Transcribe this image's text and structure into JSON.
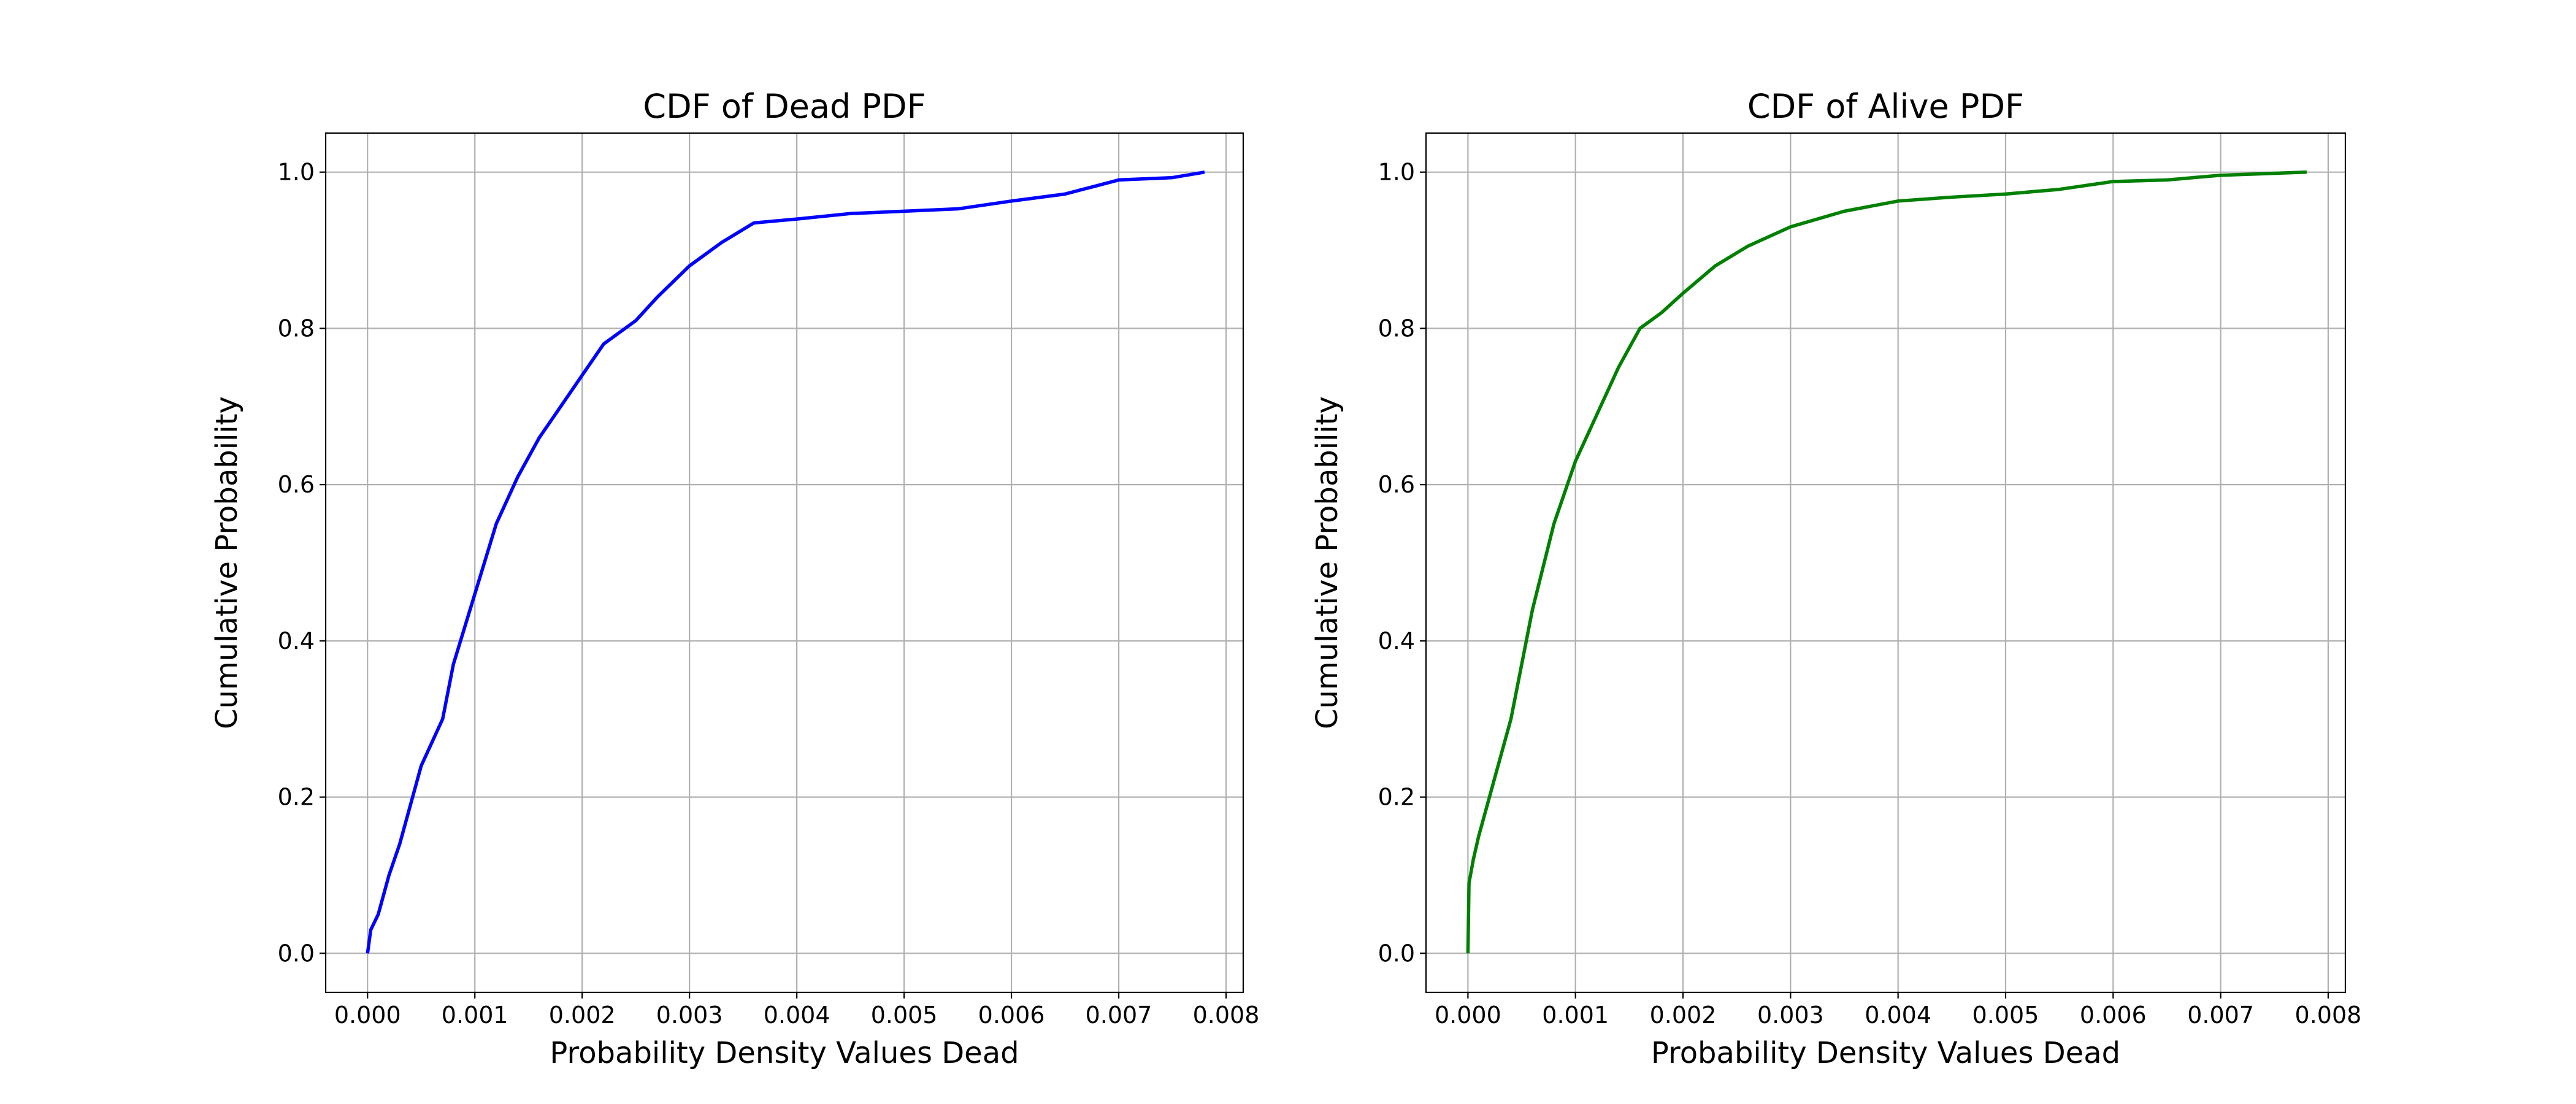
{
  "chart_data": [
    {
      "type": "line",
      "title": "CDF of Dead PDF",
      "x_label": "Probability Density Values Dead",
      "y_label": "Cumulative Probability",
      "grid": true,
      "xlim": [
        -0.00039,
        0.00816
      ],
      "ylim": [
        -0.05,
        1.05
      ],
      "xticks": [
        {
          "value": 0,
          "label": "0.000"
        },
        {
          "value": 0.001,
          "label": "0.001"
        },
        {
          "value": 0.002,
          "label": "0.002"
        },
        {
          "value": 0.003,
          "label": "0.003"
        },
        {
          "value": 0.004,
          "label": "0.004"
        },
        {
          "value": 0.005,
          "label": "0.005"
        },
        {
          "value": 0.006,
          "label": "0.006"
        },
        {
          "value": 0.007,
          "label": "0.007"
        },
        {
          "value": 0.008,
          "label": "0.008"
        }
      ],
      "yticks": [
        {
          "value": 0,
          "label": "0.0"
        },
        {
          "value": 0.2,
          "label": "0.2"
        },
        {
          "value": 0.4,
          "label": "0.4"
        },
        {
          "value": 0.6,
          "label": "0.6"
        },
        {
          "value": 0.8,
          "label": "0.8"
        },
        {
          "value": 1,
          "label": "1.0"
        }
      ],
      "x": [
        0,
        3e-05,
        0.0001,
        0.0002,
        0.0003,
        0.0005,
        0.0007,
        0.0008,
        0.001,
        0.0012,
        0.0014,
        0.0016,
        0.0018,
        0.002,
        0.0022,
        0.0025,
        0.0027,
        0.003,
        0.0033,
        0.0036,
        0.004,
        0.0045,
        0.005,
        0.0055,
        0.006,
        0.0065,
        0.007,
        0.0075,
        0.0078
      ],
      "series": [
        {
          "color": "#0000ff",
          "values": [
            0,
            0.03,
            0.05,
            0.1,
            0.14,
            0.24,
            0.3,
            0.37,
            0.46,
            0.55,
            0.61,
            0.66,
            0.7,
            0.74,
            0.78,
            0.81,
            0.84,
            0.88,
            0.91,
            0.935,
            0.94,
            0.947,
            0.95,
            0.953,
            0.963,
            0.972,
            0.99,
            0.993,
            1.0
          ]
        }
      ]
    },
    {
      "type": "line",
      "title": "CDF of Alive PDF",
      "x_label": "Probability Density Values Dead",
      "y_label": "Cumulative Probability",
      "grid": true,
      "xlim": [
        -0.00039,
        0.00816
      ],
      "ylim": [
        -0.05,
        1.05
      ],
      "xticks": [
        {
          "value": 0,
          "label": "0.000"
        },
        {
          "value": 0.001,
          "label": "0.001"
        },
        {
          "value": 0.002,
          "label": "0.002"
        },
        {
          "value": 0.003,
          "label": "0.003"
        },
        {
          "value": 0.004,
          "label": "0.004"
        },
        {
          "value": 0.005,
          "label": "0.005"
        },
        {
          "value": 0.006,
          "label": "0.006"
        },
        {
          "value": 0.007,
          "label": "0.007"
        },
        {
          "value": 0.008,
          "label": "0.008"
        }
      ],
      "yticks": [
        {
          "value": 0,
          "label": "0.0"
        },
        {
          "value": 0.2,
          "label": "0.2"
        },
        {
          "value": 0.4,
          "label": "0.4"
        },
        {
          "value": 0.6,
          "label": "0.6"
        },
        {
          "value": 0.8,
          "label": "0.8"
        },
        {
          "value": 1,
          "label": "1.0"
        }
      ],
      "x": [
        0,
        1e-05,
        5e-05,
        0.0001,
        0.0002,
        0.0004,
        0.0006,
        0.0008,
        0.001,
        0.0012,
        0.0014,
        0.0016,
        0.0018,
        0.002,
        0.0023,
        0.0026,
        0.003,
        0.0035,
        0.004,
        0.0045,
        0.005,
        0.0055,
        0.006,
        0.0065,
        0.007,
        0.0078
      ],
      "series": [
        {
          "color": "#008000",
          "values": [
            0,
            0.09,
            0.12,
            0.15,
            0.2,
            0.3,
            0.44,
            0.55,
            0.63,
            0.69,
            0.75,
            0.8,
            0.82,
            0.845,
            0.88,
            0.905,
            0.93,
            0.95,
            0.963,
            0.968,
            0.972,
            0.978,
            0.988,
            0.99,
            0.996,
            1.0
          ]
        }
      ]
    }
  ]
}
